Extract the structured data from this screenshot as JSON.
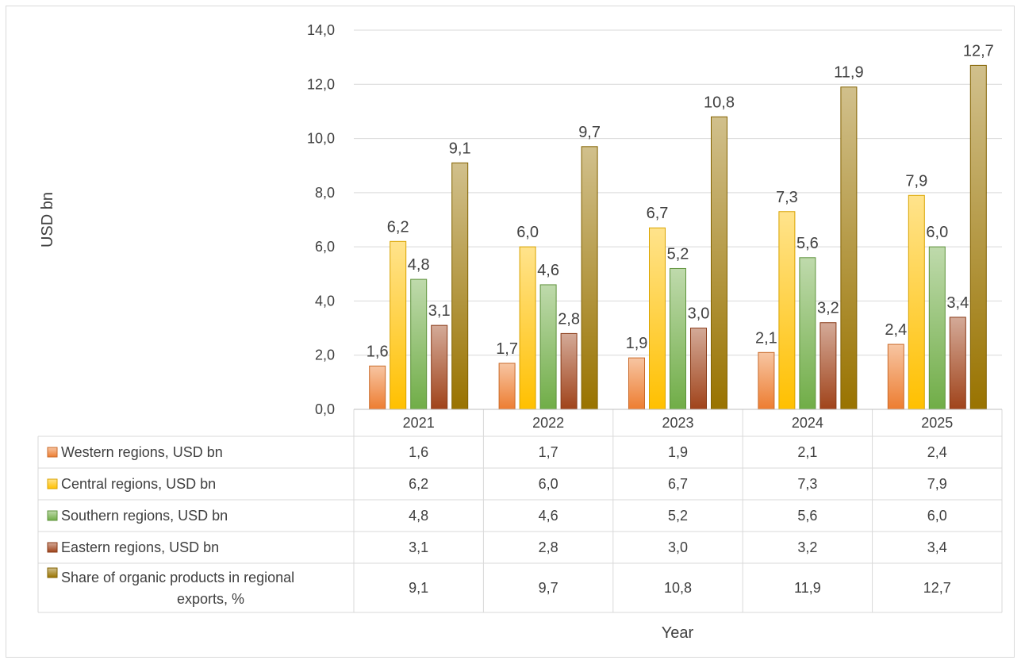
{
  "chart_data": {
    "type": "bar",
    "title": "",
    "xlabel": "Year",
    "ylabel": "USD bn",
    "categories": [
      "2021",
      "2022",
      "2023",
      "2024",
      "2025"
    ],
    "ylim": [
      0,
      14
    ],
    "yticks": [
      "0,0",
      "2,0",
      "4,0",
      "6,0",
      "8,0",
      "10,0",
      "12,0",
      "14,0"
    ],
    "grid": true,
    "legend": "data-table",
    "series": [
      {
        "name": "Western regions, USD bn",
        "values": [
          1.6,
          1.7,
          1.9,
          2.1,
          2.4
        ],
        "labels": [
          "1,6",
          "1,7",
          "1,9",
          "2,1",
          "2,4"
        ],
        "color": "#ed7d31"
      },
      {
        "name": "Central regions, USD bn",
        "values": [
          6.2,
          6.0,
          6.7,
          7.3,
          7.9
        ],
        "labels": [
          "6,2",
          "6,0",
          "6,7",
          "7,3",
          "7,9"
        ],
        "color": "#ffc000"
      },
      {
        "name": "Southern regions, USD bn",
        "values": [
          4.8,
          4.6,
          5.2,
          5.6,
          6.0
        ],
        "labels": [
          "4,8",
          "4,6",
          "5,2",
          "5,6",
          "6,0"
        ],
        "color": "#70ad47"
      },
      {
        "name": "Eastern regions, USD bn",
        "values": [
          3.1,
          2.8,
          3.0,
          3.2,
          3.4
        ],
        "labels": [
          "3,1",
          "2,8",
          "3,0",
          "3,2",
          "3,4"
        ],
        "color": "#a0431a"
      },
      {
        "name": "Share of organic products in regional exports, %",
        "name_lines": [
          "Share of organic products in regional",
          "exports, %"
        ],
        "values": [
          9.1,
          9.7,
          10.8,
          11.9,
          12.7
        ],
        "labels": [
          "9,1",
          "9,7",
          "10,8",
          "11,9",
          "12,7"
        ],
        "color": "#997300"
      }
    ]
  }
}
